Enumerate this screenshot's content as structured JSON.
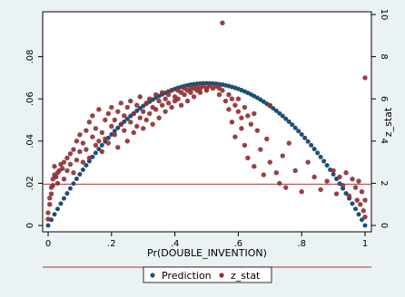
{
  "chart_data": {
    "type": "scatter",
    "title": "",
    "xlabel": "Pr(DOUBLE_INVENTION)",
    "ylabel_left": "",
    "ylabel_right": "z_stat",
    "xlim": [
      0,
      1
    ],
    "ylim_left": [
      0,
      0.1
    ],
    "ylim_right": [
      0,
      10
    ],
    "x_ticks": [
      0,
      0.2,
      0.4,
      0.6,
      0.8,
      1
    ],
    "x_tick_labels": [
      "0",
      ".2",
      ".4",
      ".6",
      ".8",
      "1"
    ],
    "y_left_ticks": [
      0,
      0.02,
      0.04,
      0.06,
      0.08
    ],
    "y_left_tick_labels": [
      "0",
      ".02",
      ".04",
      ".06",
      ".08"
    ],
    "y_right_ticks": [
      0,
      2,
      4,
      6,
      8,
      10
    ],
    "y_right_tick_labels": [
      "0",
      "2",
      "4",
      "6",
      "8",
      "10"
    ],
    "reference_line": {
      "axis": "right",
      "value": 1.96,
      "color": "#a03a3a"
    },
    "legend": {
      "position": "bottom",
      "entries": [
        "Prediction",
        "z_stat"
      ]
    },
    "colors": {
      "prediction": "#1f4f74",
      "z_stat": "#913035",
      "background": "#eaf2f3",
      "plot_bg": "#ffffff"
    },
    "series": [
      {
        "name": "Prediction",
        "axis": "left",
        "formula": "y = 4*x*(1-x)*0.0674",
        "peak_y": 0.0674,
        "x_samples": [
          0,
          0.01,
          0.02,
          0.03,
          0.04,
          0.05,
          0.06,
          0.07,
          0.08,
          0.09,
          0.1,
          0.11,
          0.12,
          0.13,
          0.14,
          0.15,
          0.16,
          0.17,
          0.18,
          0.19,
          0.2,
          0.21,
          0.22,
          0.23,
          0.24,
          0.25,
          0.26,
          0.27,
          0.28,
          0.29,
          0.3,
          0.31,
          0.32,
          0.33,
          0.34,
          0.35,
          0.36,
          0.37,
          0.38,
          0.39,
          0.4,
          0.41,
          0.42,
          0.43,
          0.44,
          0.45,
          0.46,
          0.47,
          0.48,
          0.49,
          0.5,
          0.51,
          0.52,
          0.53,
          0.54,
          0.55,
          0.56,
          0.57,
          0.58,
          0.59,
          0.6,
          0.61,
          0.62,
          0.63,
          0.64,
          0.65,
          0.66,
          0.67,
          0.68,
          0.69,
          0.7,
          0.71,
          0.72,
          0.73,
          0.74,
          0.75,
          0.76,
          0.77,
          0.78,
          0.79,
          0.8,
          0.81,
          0.82,
          0.83,
          0.84,
          0.85,
          0.86,
          0.87,
          0.88,
          0.89,
          0.9,
          0.91,
          0.92,
          0.93,
          0.94,
          0.95,
          0.96,
          0.97,
          0.98,
          0.99,
          1
        ]
      },
      {
        "name": "z_stat",
        "axis": "right",
        "points": [
          [
            0.0,
            0.3
          ],
          [
            0.0,
            0.6
          ],
          [
            0.005,
            1.0
          ],
          [
            0.005,
            1.3
          ],
          [
            0.01,
            1.5
          ],
          [
            0.01,
            1.8
          ],
          [
            0.015,
            1.9
          ],
          [
            0.015,
            2.2
          ],
          [
            0.02,
            2.4
          ],
          [
            0.02,
            2.8
          ],
          [
            0.025,
            2.3
          ],
          [
            0.03,
            2.0
          ],
          [
            0.03,
            2.5
          ],
          [
            0.035,
            2.6
          ],
          [
            0.04,
            2.9
          ],
          [
            0.045,
            2.7
          ],
          [
            0.05,
            2.2
          ],
          [
            0.05,
            3.0
          ],
          [
            0.06,
            3.2
          ],
          [
            0.06,
            2.6
          ],
          [
            0.07,
            3.4
          ],
          [
            0.07,
            2.9
          ],
          [
            0.08,
            3.6
          ],
          [
            0.08,
            2.5
          ],
          [
            0.09,
            3.1
          ],
          [
            0.09,
            4.0
          ],
          [
            0.1,
            3.5
          ],
          [
            0.1,
            4.3
          ],
          [
            0.11,
            3.9
          ],
          [
            0.11,
            3.0
          ],
          [
            0.12,
            4.5
          ],
          [
            0.12,
            3.6
          ],
          [
            0.13,
            4.9
          ],
          [
            0.13,
            3.2
          ],
          [
            0.14,
            4.2
          ],
          [
            0.14,
            5.2
          ],
          [
            0.15,
            3.8
          ],
          [
            0.15,
            4.6
          ],
          [
            0.16,
            4.0
          ],
          [
            0.16,
            5.5
          ],
          [
            0.17,
            4.4
          ],
          [
            0.17,
            3.5
          ],
          [
            0.18,
            5.0
          ],
          [
            0.18,
            4.1
          ],
          [
            0.19,
            5.3
          ],
          [
            0.19,
            3.9
          ],
          [
            0.2,
            4.7
          ],
          [
            0.2,
            5.6
          ],
          [
            0.21,
            4.3
          ],
          [
            0.21,
            5.0
          ],
          [
            0.22,
            3.7
          ],
          [
            0.22,
            5.4
          ],
          [
            0.23,
            4.8
          ],
          [
            0.23,
            5.8
          ],
          [
            0.24,
            4.5
          ],
          [
            0.24,
            5.2
          ],
          [
            0.25,
            5.6
          ],
          [
            0.25,
            4.0
          ],
          [
            0.26,
            5.9
          ],
          [
            0.26,
            4.9
          ],
          [
            0.27,
            5.3
          ],
          [
            0.27,
            4.4
          ],
          [
            0.28,
            5.7
          ],
          [
            0.28,
            4.7
          ],
          [
            0.29,
            5.1
          ],
          [
            0.29,
            6.1
          ],
          [
            0.3,
            5.4
          ],
          [
            0.3,
            4.6
          ],
          [
            0.31,
            5.8
          ],
          [
            0.31,
            5.0
          ],
          [
            0.32,
            6.0
          ],
          [
            0.32,
            5.3
          ],
          [
            0.33,
            5.6
          ],
          [
            0.33,
            4.8
          ],
          [
            0.34,
            6.2
          ],
          [
            0.34,
            5.5
          ],
          [
            0.35,
            5.9
          ],
          [
            0.35,
            5.1
          ],
          [
            0.36,
            6.3
          ],
          [
            0.36,
            5.7
          ],
          [
            0.37,
            6.0
          ],
          [
            0.37,
            5.4
          ],
          [
            0.38,
            6.2
          ],
          [
            0.38,
            5.8
          ],
          [
            0.39,
            6.4
          ],
          [
            0.39,
            5.6
          ],
          [
            0.4,
            6.1
          ],
          [
            0.4,
            5.9
          ],
          [
            0.41,
            6.4
          ],
          [
            0.41,
            6.0
          ],
          [
            0.42,
            6.3
          ],
          [
            0.42,
            5.7
          ],
          [
            0.43,
            6.5
          ],
          [
            0.43,
            6.2
          ],
          [
            0.44,
            6.4
          ],
          [
            0.44,
            5.9
          ],
          [
            0.45,
            6.5
          ],
          [
            0.45,
            6.3
          ],
          [
            0.46,
            6.5
          ],
          [
            0.46,
            6.1
          ],
          [
            0.47,
            6.6
          ],
          [
            0.47,
            6.4
          ],
          [
            0.48,
            6.5
          ],
          [
            0.48,
            6.3
          ],
          [
            0.49,
            6.6
          ],
          [
            0.5,
            6.5
          ],
          [
            0.5,
            6.4
          ],
          [
            0.51,
            6.6
          ],
          [
            0.52,
            6.5
          ],
          [
            0.53,
            6.6
          ],
          [
            0.54,
            6.5
          ],
          [
            0.54,
            6.2
          ],
          [
            0.55,
            9.6
          ],
          [
            0.55,
            6.4
          ],
          [
            0.56,
            5.9
          ],
          [
            0.57,
            6.2
          ],
          [
            0.57,
            5.5
          ],
          [
            0.58,
            6.0
          ],
          [
            0.58,
            4.9
          ],
          [
            0.59,
            5.7
          ],
          [
            0.59,
            4.2
          ],
          [
            0.6,
            5.4
          ],
          [
            0.6,
            6.0
          ],
          [
            0.61,
            5.1
          ],
          [
            0.61,
            4.6
          ],
          [
            0.62,
            5.6
          ],
          [
            0.62,
            3.8
          ],
          [
            0.63,
            5.2
          ],
          [
            0.63,
            3.2
          ],
          [
            0.64,
            4.8
          ],
          [
            0.65,
            5.3
          ],
          [
            0.65,
            2.8
          ],
          [
            0.66,
            4.5
          ],
          [
            0.67,
            3.6
          ],
          [
            0.68,
            2.4
          ],
          [
            0.69,
            4.1
          ],
          [
            0.7,
            3.0
          ],
          [
            0.7,
            5.7
          ],
          [
            0.72,
            2.5
          ],
          [
            0.73,
            2.0
          ],
          [
            0.74,
            3.3
          ],
          [
            0.75,
            1.8
          ],
          [
            0.76,
            3.9
          ],
          [
            0.78,
            2.6
          ],
          [
            0.8,
            1.6
          ],
          [
            0.82,
            3.0
          ],
          [
            0.84,
            2.3
          ],
          [
            0.86,
            1.7
          ],
          [
            0.88,
            2.1
          ],
          [
            0.9,
            2.6
          ],
          [
            0.91,
            1.5
          ],
          [
            0.92,
            2.3
          ],
          [
            0.93,
            1.9
          ],
          [
            0.94,
            2.5
          ],
          [
            0.95,
            1.4
          ],
          [
            0.96,
            2.2
          ],
          [
            0.97,
            1.8
          ],
          [
            0.975,
            1.2
          ],
          [
            0.98,
            2.1
          ],
          [
            0.985,
            1.0
          ],
          [
            0.99,
            1.6
          ],
          [
            0.995,
            0.7
          ],
          [
            1.0,
            0.4
          ],
          [
            1.0,
            1.2
          ],
          [
            1.0,
            7.0
          ]
        ]
      }
    ]
  }
}
